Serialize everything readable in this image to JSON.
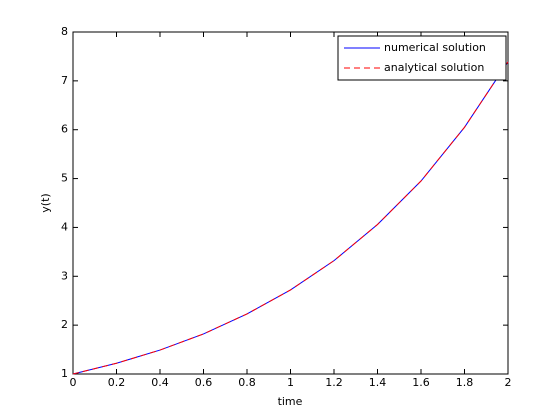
{
  "chart_data": {
    "type": "line",
    "x_label": "time",
    "y_label": "y(t)",
    "x": [
      0,
      0.2,
      0.4,
      0.6,
      0.8,
      1,
      1.2,
      1.4,
      1.6,
      1.8,
      2
    ],
    "series": [
      {
        "name": "numerical solution",
        "color": "#0000ff",
        "dash": false,
        "values": [
          1,
          1.22,
          1.49,
          1.82,
          2.23,
          2.72,
          3.32,
          4.06,
          4.95,
          6.05,
          7.39
        ]
      },
      {
        "name": "analytical solution",
        "color": "#ff0000",
        "dash": true,
        "values": [
          1,
          1.22,
          1.49,
          1.82,
          2.23,
          2.72,
          3.32,
          4.06,
          4.95,
          6.05,
          7.39
        ]
      }
    ],
    "xlim": [
      0,
      2
    ],
    "ylim": [
      1,
      8
    ],
    "xticks": [
      0,
      0.2,
      0.4,
      0.6,
      0.8,
      1,
      1.2,
      1.4,
      1.6,
      1.8,
      2
    ],
    "yticks": [
      1,
      2,
      3,
      4,
      5,
      6,
      7,
      8
    ],
    "grid": false,
    "legend_position": "northeast"
  }
}
